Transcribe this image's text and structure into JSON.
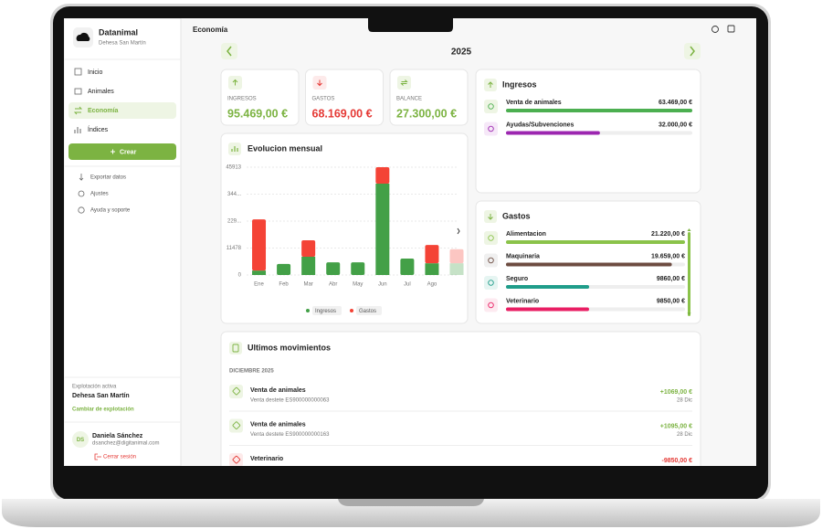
{
  "sidebar": {
    "brand": "Datanimal",
    "farm": "Dehesa San Martín",
    "nav": [
      "Inicio",
      "Animales",
      "Economía",
      "Índices"
    ],
    "create": "Crear",
    "secondary": [
      "Exportar datos",
      "Ajustes",
      "Ayuda y soporte"
    ],
    "active_label": "Explotación activa",
    "active_farm": "Dehesa San Martín",
    "change": "Cambiar de explotación",
    "user": {
      "initials": "DS",
      "name": "Daniela Sánchez",
      "email": "dsanchez@digitanimal.com"
    },
    "logout": "Cerrar sesión"
  },
  "header": {
    "title": "Economía",
    "year": "2025"
  },
  "summary": [
    {
      "label": "INGRESOS",
      "value": "95.469,00 €"
    },
    {
      "label": "GASTOS",
      "value": "68.169,00 €"
    },
    {
      "label": "BALANCE",
      "value": "27.300,00 €"
    }
  ],
  "chart_data": {
    "type": "bar",
    "stacked": true,
    "title": "Evolucion mensual",
    "categories": [
      "Ene",
      "Feb",
      "Mar",
      "Abr",
      "May",
      "Jun",
      "Jul",
      "Ago",
      null
    ],
    "series": [
      {
        "name": "Ingresos",
        "color": "#43a047",
        "values": [
          1900,
          4700,
          7800,
          5400,
          5400,
          38913,
          7000,
          5000,
          5000
        ]
      },
      {
        "name": "Gastos",
        "color": "#f44336",
        "values": [
          21800,
          0,
          7000,
          0,
          0,
          7000,
          0,
          7800,
          6000
        ]
      }
    ],
    "ylim": [
      0,
      45913
    ],
    "yticks": [
      0,
      11478,
      {
        "value": 22956,
        "label": "229..."
      },
      {
        "value": 34435,
        "label": "344..."
      },
      45913
    ],
    "grid": true
  },
  "income": {
    "title": "Ingresos",
    "items": [
      {
        "name": "Venta de animales",
        "value": 63469,
        "value_label": "63.469,00 €",
        "color": "#4caf50"
      },
      {
        "name": "Ayudas/Subvenciones",
        "value": 32000,
        "value_label": "32.000,00 €",
        "color": "#9c27b0"
      }
    ]
  },
  "expenses": {
    "title": "Gastos",
    "items": [
      {
        "name": "Alimentacion",
        "value": 21220,
        "value_label": "21.220,00 €",
        "color": "#8bc34a"
      },
      {
        "name": "Maquinaria",
        "value": 19659,
        "value_label": "19.659,00 €",
        "color": "#6d4c41"
      },
      {
        "name": "Seguro",
        "value": 9860,
        "value_label": "9860,00 €",
        "color": "#1f9d8a"
      },
      {
        "name": "Veterinario",
        "value": 9850,
        "value_label": "9850,00 €",
        "color": "#e91e63"
      }
    ]
  },
  "movements": {
    "title": "Ultimos movimientos",
    "month": "DICIEMBRE 2025",
    "rows": [
      {
        "name": "Venta de animales",
        "detail": "Venta destete ES900000000063",
        "amount": "+1069,00 €",
        "date": "28 Dic"
      },
      {
        "name": "Venta de animales",
        "detail": "Venta destete ES900000000163",
        "amount": "+1095,00 €",
        "date": "28 Dic"
      },
      {
        "name": "Veterinario",
        "amount": "-9850,00 €"
      }
    ]
  }
}
